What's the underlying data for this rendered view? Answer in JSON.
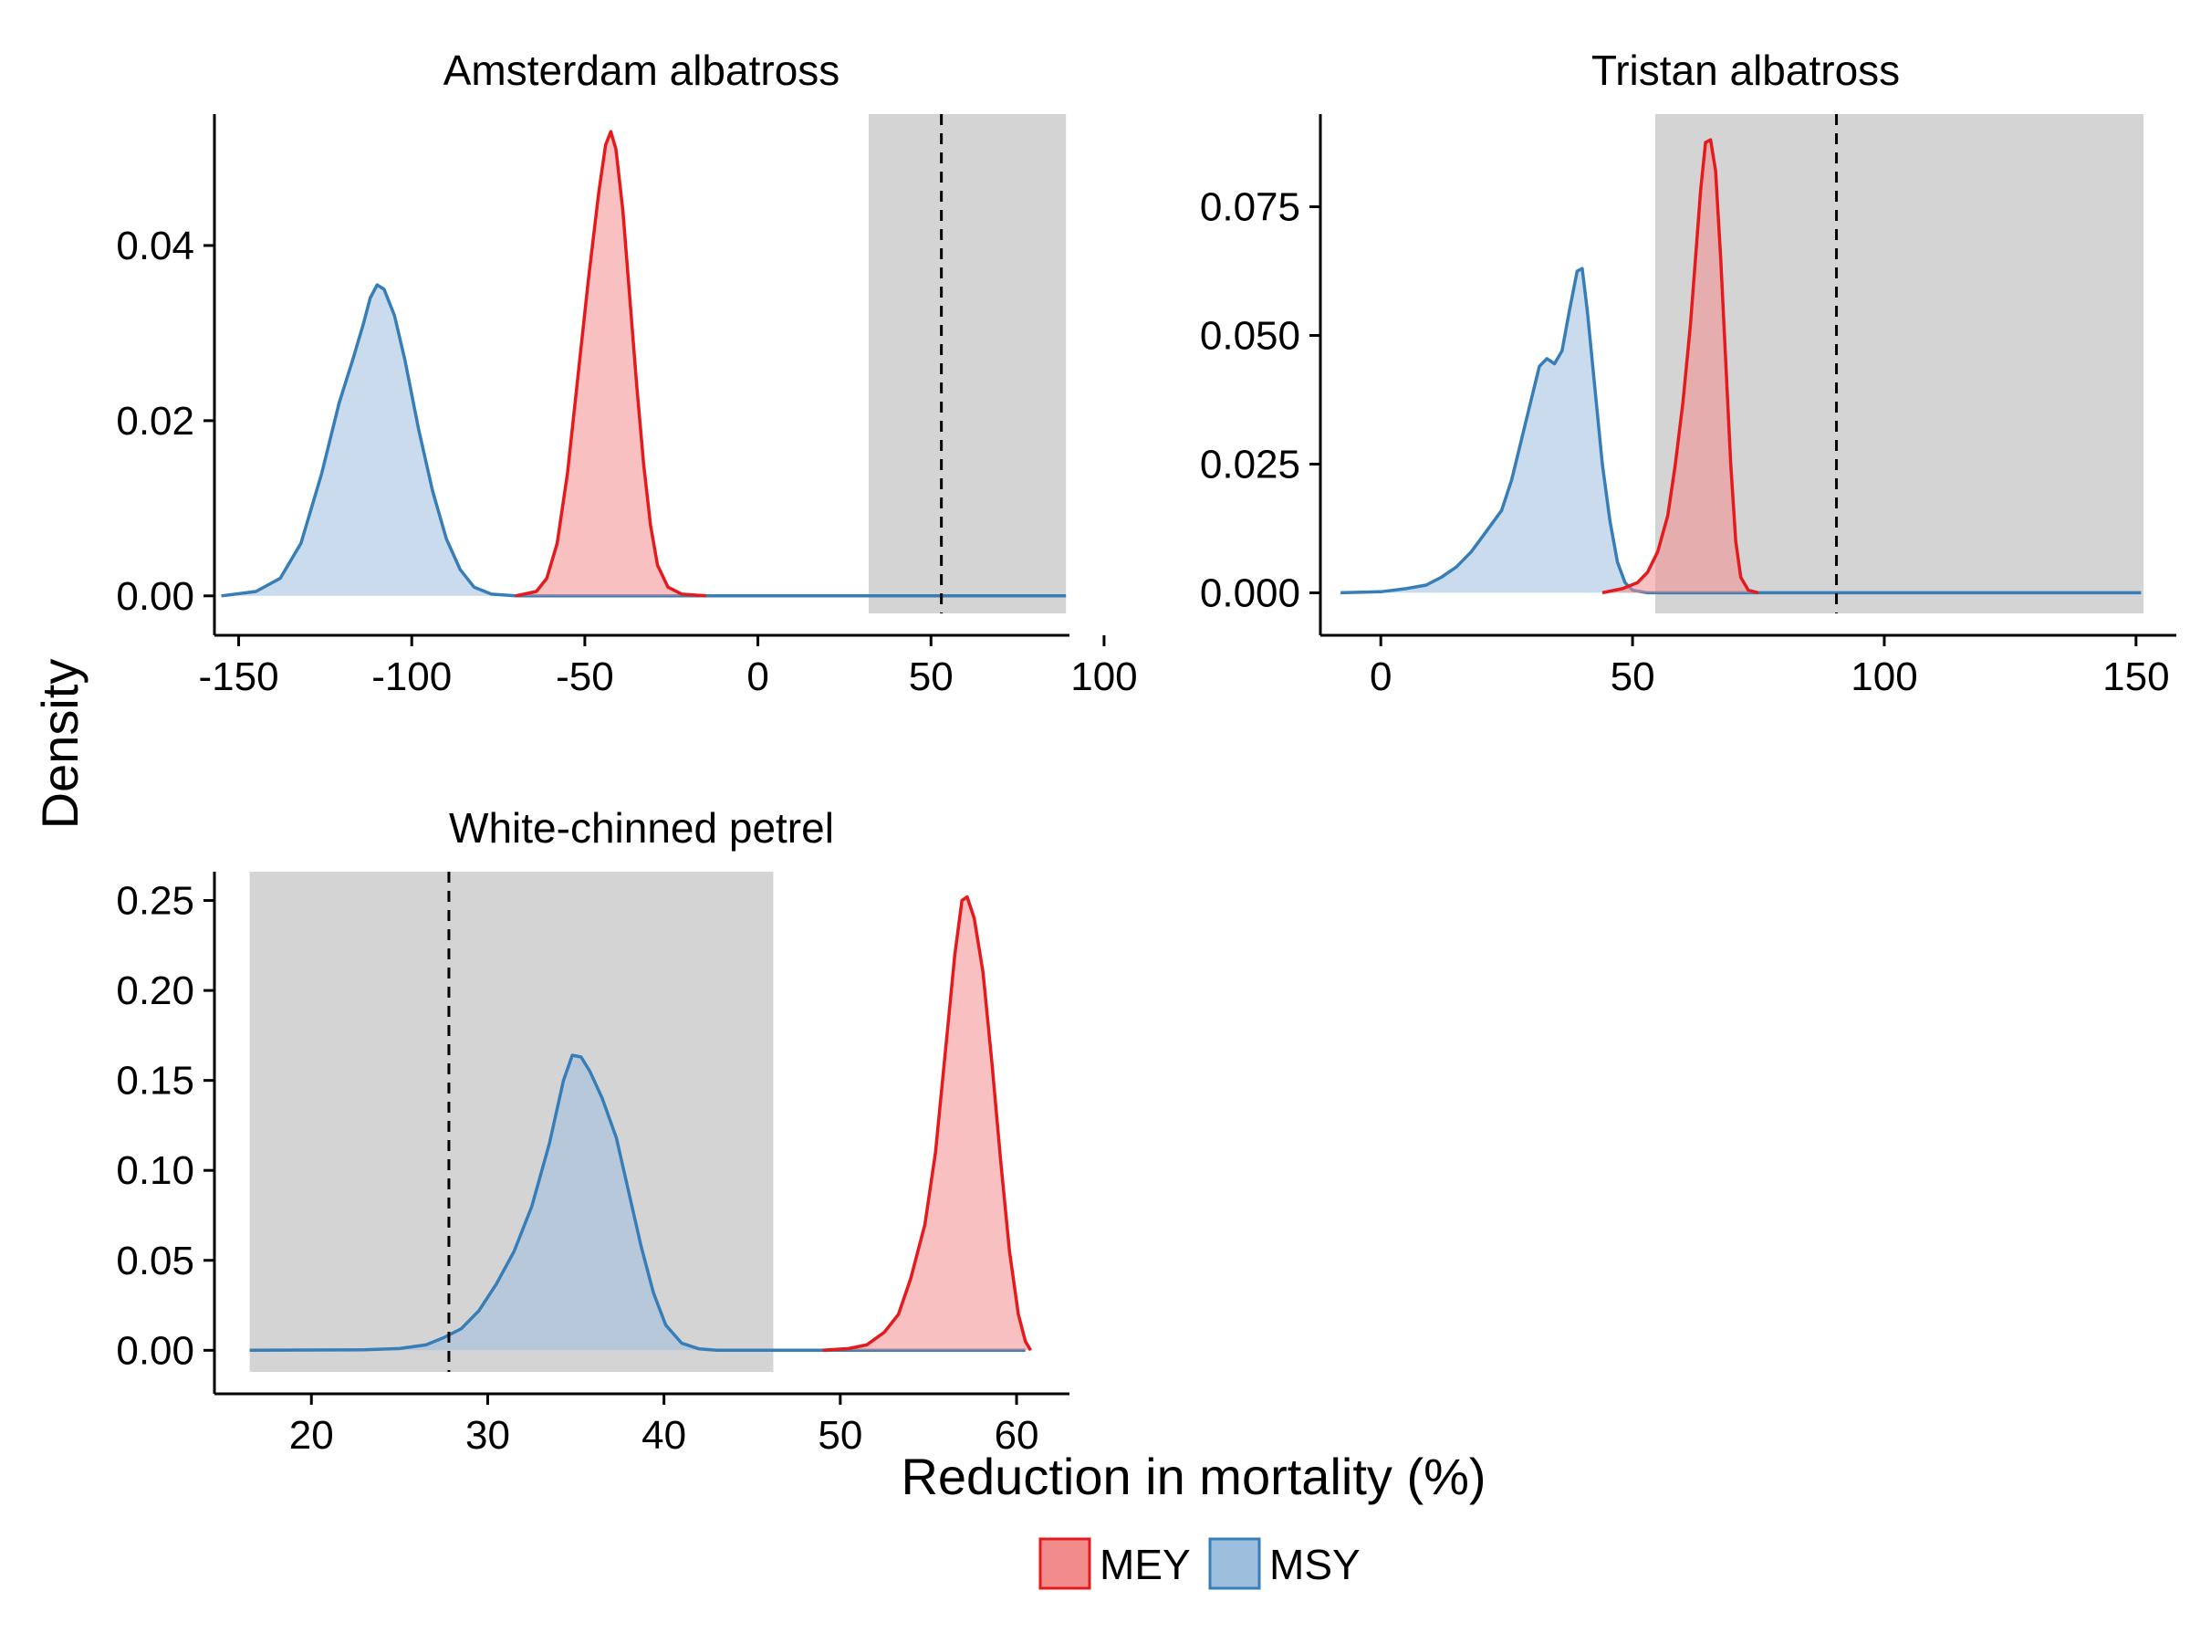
{
  "chart_data": {
    "type": "area",
    "xlabel": "Reduction in mortality (%)",
    "ylabel": "Density",
    "legend": {
      "position": "bottom",
      "entries": [
        {
          "name": "MEY",
          "fill": "#f28c8c",
          "stroke": "#e41a1c"
        },
        {
          "name": "MSY",
          "fill": "#9dbedd",
          "stroke": "#377eb8"
        }
      ]
    },
    "grid": false,
    "panels": [
      {
        "id": "amsterdam",
        "title": "Amsterdam albatross",
        "xlim": [
          -157,
          90
        ],
        "ylim": [
          -0.002,
          0.055
        ],
        "xticks": [
          -150,
          -100,
          -50,
          0,
          50,
          100
        ],
        "xtick_labels": [
          "-150",
          "-100",
          "-50",
          "0",
          "50",
          "100"
        ],
        "yticks": [
          0,
          0.02,
          0.04
        ],
        "ytick_labels": [
          "0.00",
          "0.02",
          "0.04"
        ],
        "shaded_band": [
          32,
          89
        ],
        "shade_color": "#d4d4d4",
        "vline": 53,
        "series": [
          {
            "name": "MSY",
            "points": [
              [
                -155,
                0
              ],
              [
                -145,
                0.0005
              ],
              [
                -138,
                0.002
              ],
              [
                -132,
                0.006
              ],
              [
                -126,
                0.014
              ],
              [
                -121,
                0.022
              ],
              [
                -117,
                0.027
              ],
              [
                -114,
                0.031
              ],
              [
                -112,
                0.034
              ],
              [
                -110,
                0.0355
              ],
              [
                -108,
                0.035
              ],
              [
                -105,
                0.032
              ],
              [
                -102,
                0.027
              ],
              [
                -98,
                0.019
              ],
              [
                -94,
                0.012
              ],
              [
                -90,
                0.0065
              ],
              [
                -86,
                0.003
              ],
              [
                -82,
                0.001
              ],
              [
                -77,
                0.0002
              ],
              [
                -70,
                0
              ],
              [
                89,
                0
              ]
            ]
          },
          {
            "name": "MEY",
            "points": [
              [
                -70,
                0
              ],
              [
                -64,
                0.0005
              ],
              [
                -61,
                0.002
              ],
              [
                -58,
                0.006
              ],
              [
                -55,
                0.014
              ],
              [
                -52,
                0.025
              ],
              [
                -49,
                0.036
              ],
              [
                -46,
                0.046
              ],
              [
                -44,
                0.0515
              ],
              [
                -42.5,
                0.053
              ],
              [
                -41,
                0.051
              ],
              [
                -39,
                0.044
              ],
              [
                -37,
                0.034
              ],
              [
                -35,
                0.024
              ],
              [
                -33,
                0.015
              ],
              [
                -31,
                0.008
              ],
              [
                -29,
                0.0035
              ],
              [
                -26,
                0.001
              ],
              [
                -22,
                0.0002
              ],
              [
                -15,
                0
              ]
            ]
          }
        ]
      },
      {
        "id": "tristan",
        "title": "Tristan albatross",
        "xlim": [
          -12,
          158
        ],
        "ylim": [
          -0.004,
          0.093
        ],
        "xticks": [
          0,
          50,
          100,
          150
        ],
        "xtick_labels": [
          "0",
          "50",
          "100",
          "150"
        ],
        "yticks": [
          0,
          0.025,
          0.05,
          0.075
        ],
        "ytick_labels": [
          "0.000",
          "0.025",
          "0.050",
          "0.075"
        ],
        "shaded_band": [
          54.5,
          151.5
        ],
        "shade_color": "#d4d4d4",
        "vline": 90.5,
        "series": [
          {
            "name": "MSY",
            "points": [
              [
                -8,
                0
              ],
              [
                0,
                0.0002
              ],
              [
                5,
                0.0008
              ],
              [
                9,
                0.0015
              ],
              [
                12,
                0.003
              ],
              [
                15,
                0.005
              ],
              [
                18,
                0.008
              ],
              [
                21,
                0.012
              ],
              [
                24,
                0.016
              ],
              [
                26,
                0.022
              ],
              [
                28,
                0.03
              ],
              [
                30,
                0.038
              ],
              [
                31.5,
                0.044
              ],
              [
                33,
                0.0455
              ],
              [
                34.5,
                0.0445
              ],
              [
                36,
                0.047
              ],
              [
                37.5,
                0.055
              ],
              [
                39,
                0.0625
              ],
              [
                40,
                0.063
              ],
              [
                41,
                0.055
              ],
              [
                42.5,
                0.04
              ],
              [
                44,
                0.025
              ],
              [
                45.5,
                0.014
              ],
              [
                47,
                0.006
              ],
              [
                48.5,
                0.002
              ],
              [
                50,
                0.0005
              ],
              [
                53,
                0
              ],
              [
                151,
                0
              ]
            ]
          },
          {
            "name": "MEY",
            "points": [
              [
                44,
                0
              ],
              [
                48,
                0.0008
              ],
              [
                51,
                0.002
              ],
              [
                53,
                0.004
              ],
              [
                55,
                0.008
              ],
              [
                57,
                0.015
              ],
              [
                58.5,
                0.025
              ],
              [
                60,
                0.037
              ],
              [
                61.5,
                0.052
              ],
              [
                62.5,
                0.065
              ],
              [
                63.5,
                0.078
              ],
              [
                64.5,
                0.0875
              ],
              [
                65.5,
                0.088
              ],
              [
                66.5,
                0.082
              ],
              [
                67.5,
                0.065
              ],
              [
                68.5,
                0.045
              ],
              [
                69.5,
                0.025
              ],
              [
                70.5,
                0.01
              ],
              [
                71.5,
                0.003
              ],
              [
                73,
                0.0005
              ],
              [
                75,
                0
              ]
            ]
          }
        ]
      },
      {
        "id": "petrel",
        "title": "White-chinned petrel",
        "xlim": [
          14.5,
          63
        ],
        "ylim": [
          -0.012,
          0.266
        ],
        "xticks": [
          20,
          30,
          40,
          50,
          60
        ],
        "xtick_labels": [
          "20",
          "30",
          "40",
          "50",
          "60"
        ],
        "yticks": [
          0,
          0.05,
          0.1,
          0.15,
          0.2,
          0.25
        ],
        "ytick_labels": [
          "0.00",
          "0.05",
          "0.10",
          "0.15",
          "0.20",
          "0.25"
        ],
        "shaded_band": [
          16.5,
          46.2
        ],
        "shade_color": "#d4d4d4",
        "vline": 27.8,
        "series": [
          {
            "name": "MSY",
            "points": [
              [
                16.5,
                0
              ],
              [
                23,
                0.0003
              ],
              [
                25,
                0.001
              ],
              [
                26.5,
                0.003
              ],
              [
                27.5,
                0.007
              ],
              [
                28.5,
                0.012
              ],
              [
                29.5,
                0.022
              ],
              [
                30.5,
                0.037
              ],
              [
                31.5,
                0.055
              ],
              [
                32.5,
                0.08
              ],
              [
                33.5,
                0.115
              ],
              [
                34.3,
                0.15
              ],
              [
                34.8,
                0.164
              ],
              [
                35.3,
                0.163
              ],
              [
                35.8,
                0.155
              ],
              [
                36.5,
                0.14
              ],
              [
                37.3,
                0.118
              ],
              [
                38,
                0.088
              ],
              [
                38.7,
                0.058
              ],
              [
                39.4,
                0.032
              ],
              [
                40.1,
                0.014
              ],
              [
                41,
                0.004
              ],
              [
                42,
                0.0008
              ],
              [
                43,
                0
              ],
              [
                60.5,
                0
              ]
            ]
          },
          {
            "name": "MEY",
            "points": [
              [
                49,
                0
              ],
              [
                50.5,
                0.001
              ],
              [
                51.5,
                0.003
              ],
              [
                52.5,
                0.01
              ],
              [
                53.3,
                0.02
              ],
              [
                54,
                0.04
              ],
              [
                54.8,
                0.07
              ],
              [
                55.4,
                0.11
              ],
              [
                56,
                0.17
              ],
              [
                56.5,
                0.22
              ],
              [
                56.9,
                0.25
              ],
              [
                57.2,
                0.252
              ],
              [
                57.6,
                0.24
              ],
              [
                58.1,
                0.21
              ],
              [
                58.6,
                0.16
              ],
              [
                59.1,
                0.105
              ],
              [
                59.6,
                0.055
              ],
              [
                60.1,
                0.02
              ],
              [
                60.5,
                0.005
              ],
              [
                60.8,
                0
              ]
            ]
          }
        ]
      }
    ]
  }
}
